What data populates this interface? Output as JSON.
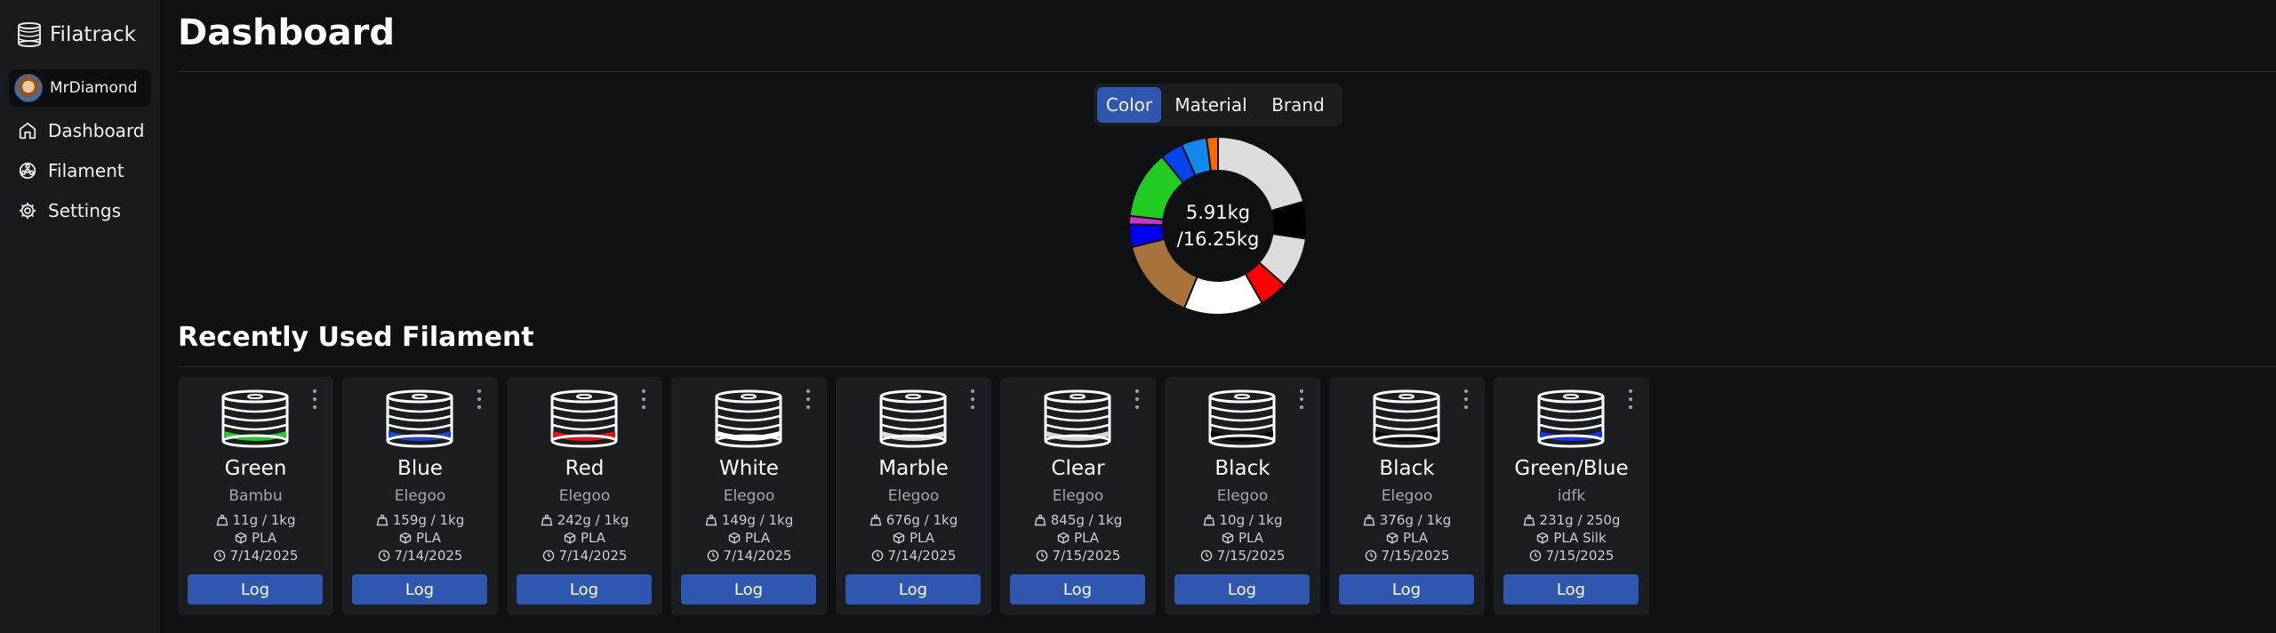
{
  "app": {
    "title": "Filatrack"
  },
  "user": {
    "name": "MrDiamond"
  },
  "nav": [
    {
      "label": "Dashboard",
      "icon": "home-icon"
    },
    {
      "label": "Filament",
      "icon": "filament-reel-icon"
    },
    {
      "label": "Settings",
      "icon": "gear-icon"
    }
  ],
  "page": {
    "title": "Dashboard",
    "recent_title": "Recently Used Filament"
  },
  "chart_tabs": [
    {
      "label": "Color",
      "active": true
    },
    {
      "label": "Material",
      "active": false
    },
    {
      "label": "Brand",
      "active": false
    }
  ],
  "usage": {
    "used": "5.91kg",
    "total": "/16.25kg"
  },
  "chart_data": {
    "type": "pie",
    "categories": [
      "Light Gray",
      "Black",
      "Light Gray 2",
      "Red",
      "White",
      "Brown",
      "Blue",
      "Magenta",
      "Green",
      "Blue 2",
      "Sky Blue",
      "Orange"
    ],
    "values": [
      20,
      6.5,
      9,
      5,
      14,
      14.5,
      4,
      1.5,
      12,
      4,
      4.5,
      2
    ],
    "colors": [
      "#dcdcdc",
      "#000000",
      "#dcdcdc",
      "#ff0000",
      "#ffffff",
      "#a8733a",
      "#0000ee",
      "#cc33cc",
      "#22cc22",
      "#0044ee",
      "#1188ee",
      "#ff6600"
    ]
  },
  "filaments": [
    {
      "name": "Green",
      "brand": "Bambu",
      "weight": "11g / 1kg",
      "material": "PLA",
      "date": "7/14/2025",
      "color": "#22cc22",
      "log": "Log"
    },
    {
      "name": "Blue",
      "brand": "Elegoo",
      "weight": "159g / 1kg",
      "material": "PLA",
      "date": "7/14/2025",
      "color": "#1f44dd",
      "log": "Log"
    },
    {
      "name": "Red",
      "brand": "Elegoo",
      "weight": "242g / 1kg",
      "material": "PLA",
      "date": "7/14/2025",
      "color": "#ee1111",
      "log": "Log"
    },
    {
      "name": "White",
      "brand": "Elegoo",
      "weight": "149g / 1kg",
      "material": "PLA",
      "date": "7/14/2025",
      "color": "#ffffff",
      "log": "Log"
    },
    {
      "name": "Marble",
      "brand": "Elegoo",
      "weight": "676g / 1kg",
      "material": "PLA",
      "date": "7/14/2025",
      "color": "#dddddd",
      "log": "Log"
    },
    {
      "name": "Clear",
      "brand": "Elegoo",
      "weight": "845g / 1kg",
      "material": "PLA",
      "date": "7/15/2025",
      "color": "#d6d6d6",
      "log": "Log"
    },
    {
      "name": "Black",
      "brand": "Elegoo",
      "weight": "10g / 1kg",
      "material": "PLA",
      "date": "7/15/2025",
      "color": "#000000",
      "log": "Log"
    },
    {
      "name": "Black",
      "brand": "Elegoo",
      "weight": "376g / 1kg",
      "material": "PLA",
      "date": "7/15/2025",
      "color": "#000000",
      "log": "Log"
    },
    {
      "name": "Green/Blue",
      "brand": "idfk",
      "weight": "231g / 250g",
      "material": "PLA Silk",
      "date": "7/15/2025",
      "color": "#1a33ee",
      "log": "Log"
    }
  ]
}
